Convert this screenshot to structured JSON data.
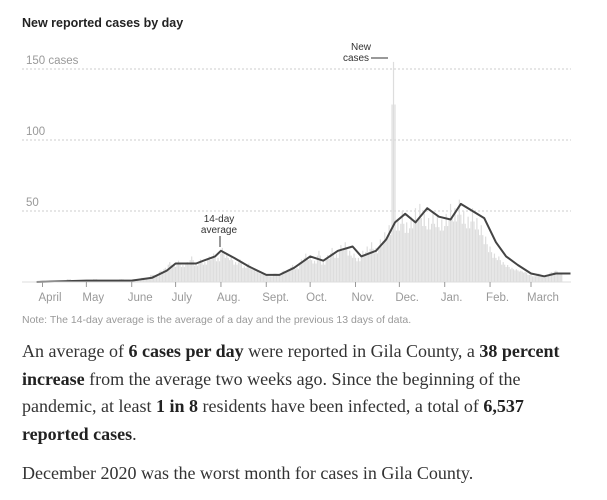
{
  "chart_data": {
    "type": "bar+line",
    "title": "New reported cases by day",
    "ylim": [
      0,
      150
    ],
    "y_ticks": [
      {
        "value": 150,
        "label": "150 cases"
      },
      {
        "value": 100,
        "label": "100"
      },
      {
        "value": 50,
        "label": "50"
      }
    ],
    "grid": true,
    "x_ticks": [
      {
        "date": "2020-04-01",
        "label": "April"
      },
      {
        "date": "2020-05-01",
        "label": "May"
      },
      {
        "date": "2020-06-01",
        "label": "June"
      },
      {
        "date": "2020-07-01",
        "label": "July"
      },
      {
        "date": "2020-08-01",
        "label": "Aug."
      },
      {
        "date": "2020-09-01",
        "label": "Sept."
      },
      {
        "date": "2020-10-01",
        "label": "Oct."
      },
      {
        "date": "2020-11-01",
        "label": "Nov."
      },
      {
        "date": "2020-12-01",
        "label": "Dec."
      },
      {
        "date": "2021-01-01",
        "label": "Jan."
      },
      {
        "date": "2021-02-01",
        "label": "Feb."
      },
      {
        "date": "2021-03-01",
        "label": "March"
      }
    ],
    "new_cases": {
      "label": "New cases",
      "start_date": "2020-03-28",
      "interval_days": 3,
      "values": [
        0,
        1,
        0,
        1,
        1,
        0,
        1,
        2,
        1,
        0,
        1,
        1,
        0,
        2,
        1,
        1,
        0,
        1,
        1,
        2,
        1,
        1,
        2,
        1,
        3,
        2,
        5,
        4,
        8,
        10,
        14,
        12,
        15,
        12,
        14,
        18,
        13,
        16,
        14,
        18,
        20,
        17,
        24,
        20,
        18,
        14,
        16,
        11,
        13,
        10,
        8,
        6,
        5,
        4,
        6,
        5,
        8,
        9,
        12,
        10,
        16,
        20,
        18,
        15,
        22,
        14,
        19,
        24,
        20,
        26,
        28,
        22,
        20,
        17,
        22,
        25,
        28,
        24,
        30,
        35,
        40,
        155,
        44,
        50,
        42,
        46,
        52,
        55,
        48,
        45,
        50,
        47,
        44,
        48,
        55,
        52,
        58,
        50,
        46,
        52,
        45,
        40,
        32,
        25,
        20,
        18,
        14,
        12,
        10,
        9,
        8,
        7,
        5,
        4,
        6,
        4,
        5,
        7,
        8,
        6
      ]
    },
    "average": {
      "label": "14-day average",
      "points": [
        [
          "2020-03-28",
          0
        ],
        [
          "2020-05-01",
          1
        ],
        [
          "2020-06-01",
          1
        ],
        [
          "2020-06-15",
          3
        ],
        [
          "2020-06-25",
          8
        ],
        [
          "2020-07-01",
          13
        ],
        [
          "2020-07-15",
          13
        ],
        [
          "2020-07-20",
          15
        ],
        [
          "2020-07-28",
          18
        ],
        [
          "2020-08-01",
          22
        ],
        [
          "2020-08-10",
          17
        ],
        [
          "2020-08-20",
          11
        ],
        [
          "2020-09-01",
          5
        ],
        [
          "2020-09-10",
          5
        ],
        [
          "2020-09-20",
          10
        ],
        [
          "2020-10-01",
          18
        ],
        [
          "2020-10-10",
          15
        ],
        [
          "2020-10-20",
          22
        ],
        [
          "2020-10-30",
          25
        ],
        [
          "2020-11-05",
          18
        ],
        [
          "2020-11-15",
          22
        ],
        [
          "2020-11-22",
          30
        ],
        [
          "2020-11-28",
          42
        ],
        [
          "2020-12-05",
          48
        ],
        [
          "2020-12-12",
          42
        ],
        [
          "2020-12-20",
          52
        ],
        [
          "2020-12-28",
          46
        ],
        [
          "2021-01-05",
          44
        ],
        [
          "2021-01-12",
          55
        ],
        [
          "2021-01-20",
          50
        ],
        [
          "2021-01-28",
          45
        ],
        [
          "2021-02-05",
          28
        ],
        [
          "2021-02-12",
          18
        ],
        [
          "2021-02-20",
          12
        ],
        [
          "2021-03-01",
          6
        ],
        [
          "2021-03-10",
          4
        ],
        [
          "2021-03-18",
          6
        ],
        [
          "2021-03-28",
          6
        ]
      ]
    },
    "annotations": {
      "new_cases": [
        "New",
        "cases"
      ],
      "average": [
        "14-day",
        "average"
      ]
    },
    "note": "Note: The 14-day average is the average of a day and the previous 13 days of data.",
    "colors": {
      "bars": "#dddddd",
      "line": "#444444",
      "grid": "#cccccc"
    }
  },
  "summary": {
    "p1": [
      "An average of ",
      "6 cases per day",
      " were reported in Gila County, a ",
      "38 percent increase",
      " from the average two weeks ago. Since the beginning of the pandemic, at least ",
      "1 in 8",
      " residents have been infected, a total of ",
      "6,537 reported cases",
      "."
    ],
    "p2": "December 2020 was the worst month for cases in Gila County."
  }
}
